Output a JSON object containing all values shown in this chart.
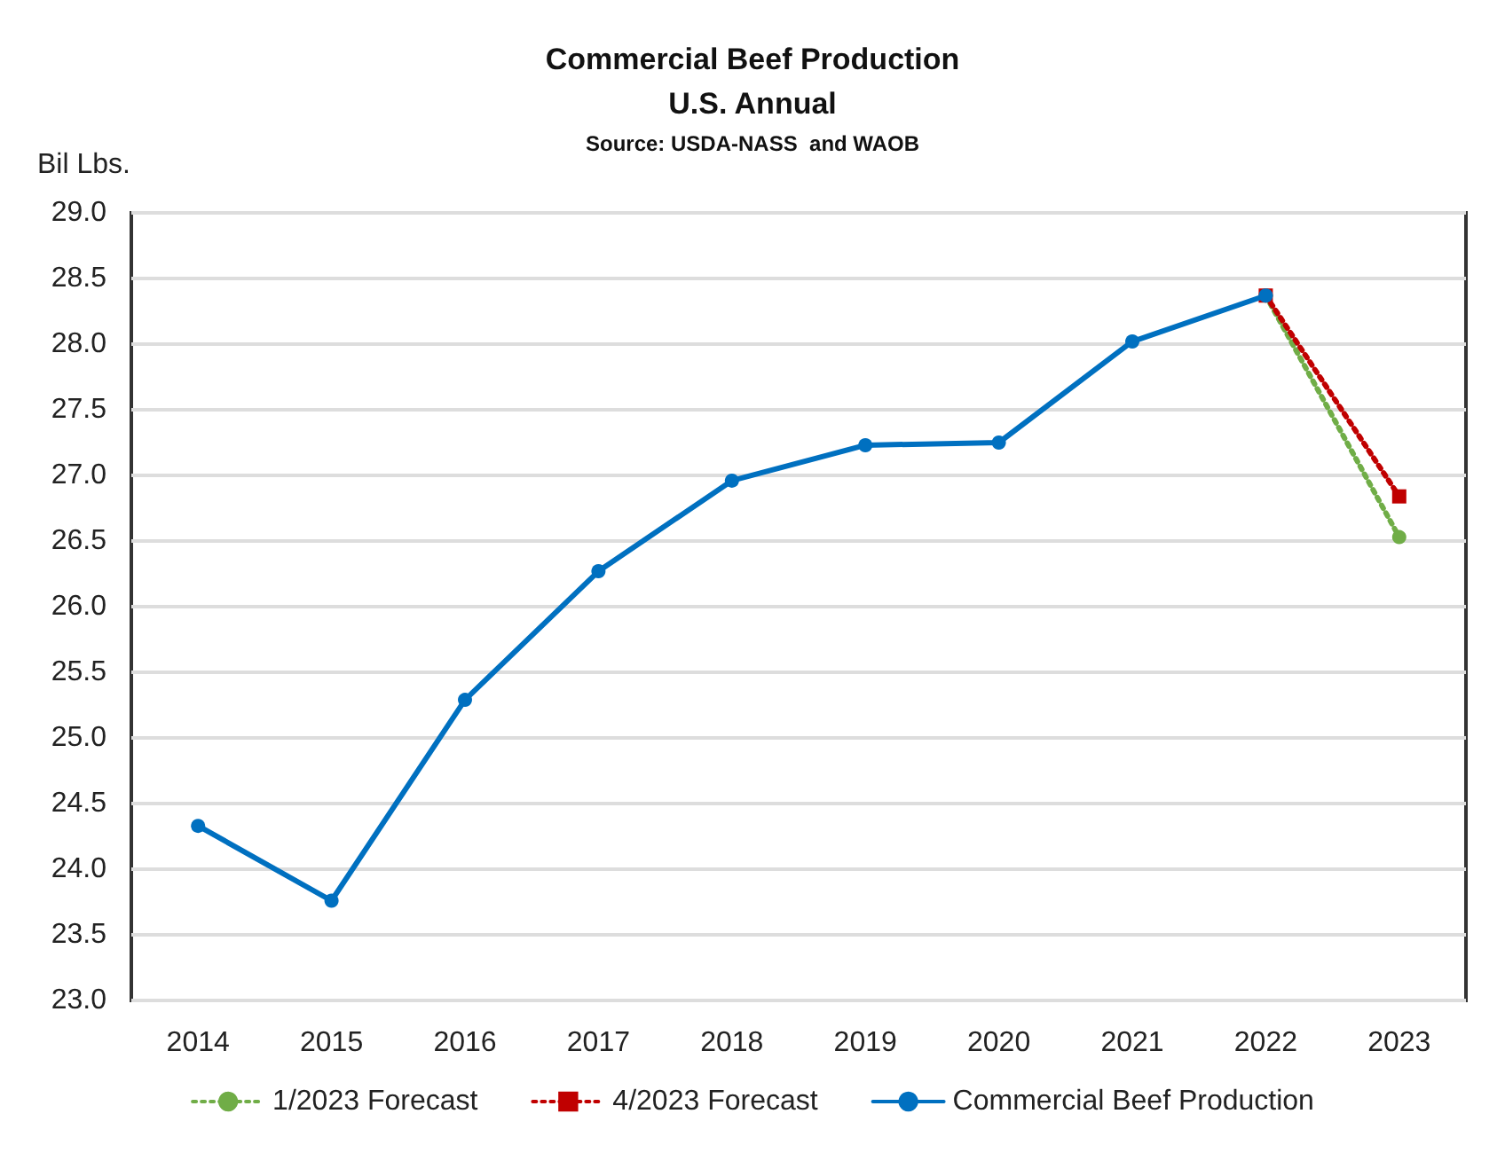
{
  "chart_data": {
    "type": "line",
    "title": "Commercial Beef Production",
    "subtitle": "U.S. Annual",
    "annotations": [
      "Source: USDA-NASS  and WAOB"
    ],
    "ylabel": "Bil Lbs.",
    "categories": [
      "2014",
      "2015",
      "2016",
      "2017",
      "2018",
      "2019",
      "2020",
      "2021",
      "2022",
      "2023"
    ],
    "series": [
      {
        "name": "1/2023 Forecast",
        "color": "#70ad47",
        "marker": "circle",
        "line_style": "dotted",
        "values": [
          null,
          null,
          null,
          null,
          null,
          null,
          null,
          null,
          28.37,
          26.53
        ]
      },
      {
        "name": "4/2023 Forecast",
        "color": "#c00000",
        "marker": "square",
        "line_style": "dotted",
        "values": [
          null,
          null,
          null,
          null,
          null,
          null,
          null,
          null,
          28.37,
          26.84
        ]
      },
      {
        "name": "Commercial Beef Production",
        "color": "#0070c0",
        "marker": "circle",
        "line_style": "solid",
        "values": [
          24.33,
          23.76,
          25.29,
          26.27,
          26.96,
          27.23,
          27.25,
          28.02,
          28.37,
          null
        ]
      }
    ],
    "ylim": [
      23,
      29
    ],
    "yticks": [
      {
        "value": 23,
        "label": "23.0"
      },
      23.5,
      {
        "value": 24,
        "label": "24.0"
      },
      24.5,
      {
        "value": 25,
        "label": "25.0"
      },
      25.5,
      {
        "value": 26,
        "label": "26.0"
      },
      26.5,
      {
        "value": 27,
        "label": "27.0"
      },
      27.5,
      {
        "value": 28,
        "label": "28.0"
      },
      28.5,
      {
        "value": 29,
        "label": "29.0"
      }
    ],
    "grid": "y",
    "legend": "bottom"
  }
}
